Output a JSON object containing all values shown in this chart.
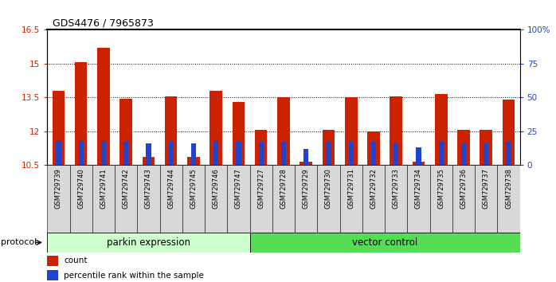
{
  "title": "GDS4476 / 7965873",
  "samples": [
    "GSM729739",
    "GSM729740",
    "GSM729741",
    "GSM729742",
    "GSM729743",
    "GSM729744",
    "GSM729745",
    "GSM729746",
    "GSM729747",
    "GSM729727",
    "GSM729728",
    "GSM729729",
    "GSM729730",
    "GSM729731",
    "GSM729732",
    "GSM729733",
    "GSM729734",
    "GSM729735",
    "GSM729736",
    "GSM729737",
    "GSM729738"
  ],
  "counts": [
    13.8,
    15.05,
    15.7,
    13.45,
    10.85,
    13.55,
    10.85,
    13.8,
    13.3,
    12.05,
    13.5,
    10.65,
    12.05,
    13.5,
    12.0,
    13.55,
    10.65,
    13.65,
    12.05,
    12.05,
    13.4
  ],
  "percentiles": [
    18,
    18,
    18,
    17,
    16,
    17,
    16,
    18,
    17,
    17,
    17,
    12,
    17,
    17,
    17,
    16,
    13,
    17,
    16,
    16,
    17
  ],
  "group1_count": 9,
  "group2_count": 12,
  "group1_label": "parkin expression",
  "group2_label": "vector control",
  "group1_color": "#ccffcc",
  "group2_color": "#55dd55",
  "bar_color": "#cc2200",
  "percentile_color": "#2244cc",
  "ylim_left": [
    10.5,
    16.5
  ],
  "ylim_right": [
    0,
    100
  ],
  "yticks_left": [
    10.5,
    12.0,
    13.5,
    15.0,
    16.5
  ],
  "yticks_right": [
    0,
    25,
    50,
    75,
    100
  ],
  "ytick_labels_left": [
    "10.5",
    "12",
    "13.5",
    "15",
    "16.5"
  ],
  "ytick_labels_right": [
    "0",
    "25",
    "50",
    "75",
    "100%"
  ],
  "legend_count_label": "count",
  "legend_percentile_label": "percentile rank within the sample",
  "protocol_label": "protocol",
  "cell_bg_color": "#d8d8d8",
  "plot_bg_color": "#ffffff"
}
